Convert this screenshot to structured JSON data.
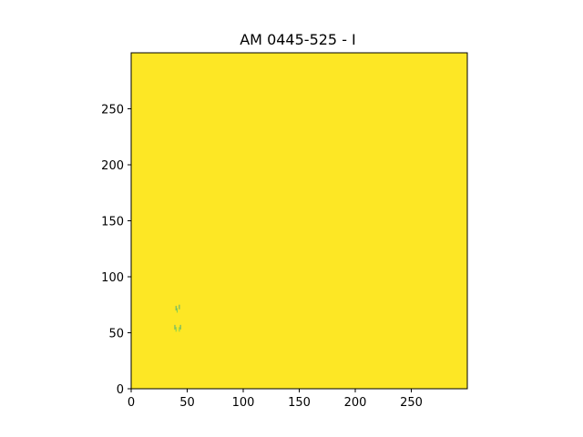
{
  "chart_data": {
    "type": "heatmap",
    "title": "AM 0445-525 - I",
    "xlabel": "",
    "ylabel": "",
    "xlim": [
      0,
      300
    ],
    "ylim": [
      0,
      300
    ],
    "origin": "lower",
    "xticks": [
      0,
      50,
      100,
      150,
      200,
      250
    ],
    "yticks": [
      0,
      50,
      100,
      150,
      200,
      250
    ],
    "grid": false,
    "colormap": "viridis",
    "fill_color": "#fde725",
    "features": [
      {
        "shape": "speckle",
        "color": "#2a9d8f",
        "x": 40,
        "y": 72
      },
      {
        "shape": "speckle",
        "color": "#2a9d8f",
        "x": 43,
        "y": 73
      },
      {
        "shape": "speckle",
        "color": "#5ec962",
        "x": 41,
        "y": 70
      },
      {
        "shape": "speckle",
        "color": "#2a9d8f",
        "x": 39,
        "y": 55
      },
      {
        "shape": "speckle",
        "color": "#2a9d8f",
        "x": 44,
        "y": 55
      },
      {
        "shape": "speckle",
        "color": "#5ec962",
        "x": 40,
        "y": 53
      },
      {
        "shape": "speckle",
        "color": "#5ec962",
        "x": 43,
        "y": 53
      }
    ]
  }
}
